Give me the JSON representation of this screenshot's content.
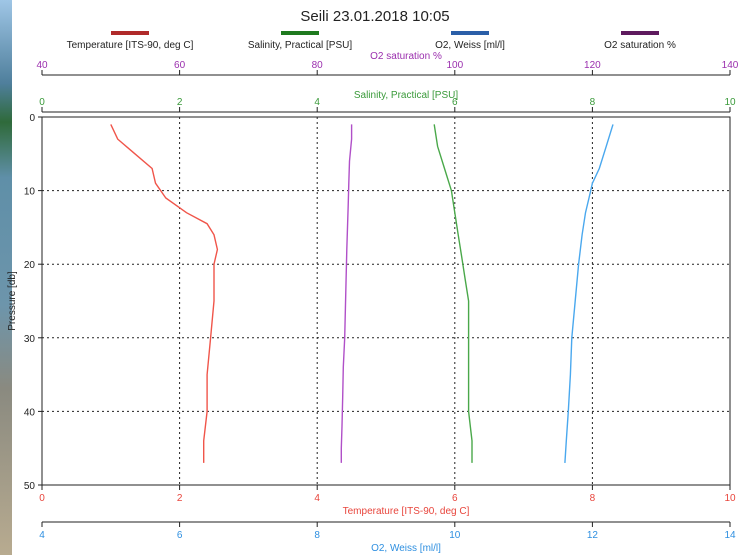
{
  "chart_data": {
    "type": "line",
    "title": "Seili 23.01.2018 10:05",
    "y_axis": {
      "label": "Pressure [db]",
      "range": [
        50,
        0
      ],
      "ticks": [
        0,
        10,
        20,
        30,
        40,
        50
      ]
    },
    "legend": [
      {
        "name": "Temperature [ITS-90, deg C]",
        "color": "#b02a2a"
      },
      {
        "name": "Salinity, Practical [PSU]",
        "color": "#1f7a1f"
      },
      {
        "name": "O2, Weiss [ml/l]",
        "color": "#2b5fa8"
      },
      {
        "name": "O2 saturation %",
        "color": "#5e1a5e"
      }
    ],
    "x_axes": [
      {
        "id": "o2sat",
        "label": "O2 saturation %",
        "range": [
          40,
          140
        ],
        "ticks": [
          40,
          60,
          80,
          100,
          120,
          140
        ],
        "position": "top",
        "color": "#9b2fae"
      },
      {
        "id": "salinity",
        "label": "Salinity, Practical [PSU]",
        "range": [
          0,
          10
        ],
        "ticks": [
          0,
          2,
          4,
          6,
          8,
          10
        ],
        "position": "top",
        "color": "#3a9a3a"
      },
      {
        "id": "temp",
        "label": "Temperature [ITS-90, deg C]",
        "range": [
          0,
          10
        ],
        "ticks": [
          0,
          2,
          4,
          6,
          8,
          10
        ],
        "position": "bottom",
        "color": "#e8453c"
      },
      {
        "id": "o2",
        "label": "O2, Weiss [ml/l]",
        "range": [
          4,
          14
        ],
        "ticks": [
          4,
          6,
          8,
          10,
          12,
          14
        ],
        "position": "bottom",
        "color": "#2e8fe0"
      }
    ],
    "grid": true,
    "series": [
      {
        "name": "Temperature [ITS-90, deg C]",
        "axis": "temp",
        "color": "#f0554a",
        "points": [
          [
            1.0,
            1
          ],
          [
            1.1,
            3
          ],
          [
            1.35,
            5
          ],
          [
            1.6,
            7
          ],
          [
            1.65,
            9
          ],
          [
            1.8,
            11
          ],
          [
            2.1,
            13
          ],
          [
            2.4,
            14.5
          ],
          [
            2.5,
            16
          ],
          [
            2.55,
            18
          ],
          [
            2.5,
            20
          ],
          [
            2.5,
            25
          ],
          [
            2.45,
            30
          ],
          [
            2.4,
            35
          ],
          [
            2.4,
            40
          ],
          [
            2.35,
            44
          ],
          [
            2.35,
            47
          ]
        ]
      },
      {
        "name": "O2 saturation %",
        "axis": "o2sat",
        "color": "#b050c8",
        "points": [
          [
            85.0,
            1
          ],
          [
            85.0,
            3
          ],
          [
            84.7,
            6
          ],
          [
            84.6,
            9
          ],
          [
            84.5,
            12
          ],
          [
            84.4,
            15
          ],
          [
            84.3,
            18
          ],
          [
            84.2,
            22
          ],
          [
            84.1,
            26
          ],
          [
            84.0,
            30
          ],
          [
            83.8,
            34
          ],
          [
            83.7,
            38
          ],
          [
            83.6,
            42
          ],
          [
            83.5,
            45
          ],
          [
            83.5,
            47
          ]
        ]
      },
      {
        "name": "Salinity, Practical [PSU]",
        "axis": "salinity",
        "color": "#4aa84a",
        "points": [
          [
            5.7,
            1
          ],
          [
            5.75,
            4
          ],
          [
            5.85,
            7
          ],
          [
            5.95,
            10
          ],
          [
            6.0,
            13
          ],
          [
            6.05,
            16
          ],
          [
            6.1,
            19
          ],
          [
            6.15,
            22
          ],
          [
            6.2,
            25
          ],
          [
            6.2,
            30
          ],
          [
            6.2,
            35
          ],
          [
            6.2,
            40
          ],
          [
            6.25,
            44
          ],
          [
            6.25,
            47
          ]
        ]
      },
      {
        "name": "O2, Weiss [ml/l]",
        "axis": "o2",
        "color": "#4aa8ee",
        "points": [
          [
            12.3,
            1
          ],
          [
            12.2,
            4
          ],
          [
            12.1,
            7
          ],
          [
            12.0,
            9
          ],
          [
            11.95,
            11
          ],
          [
            11.9,
            13
          ],
          [
            11.85,
            16
          ],
          [
            11.8,
            20
          ],
          [
            11.75,
            25
          ],
          [
            11.7,
            30
          ],
          [
            11.68,
            35
          ],
          [
            11.65,
            40
          ],
          [
            11.62,
            44
          ],
          [
            11.6,
            47
          ]
        ]
      }
    ]
  }
}
